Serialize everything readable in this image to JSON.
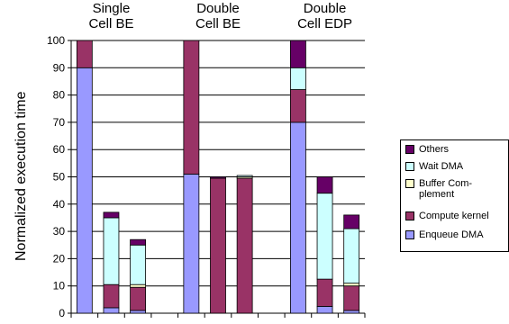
{
  "chart_data": {
    "type": "bar",
    "stacked": true,
    "ylabel": "Normalized execution time",
    "ylim": [
      0,
      100
    ],
    "yticks": [
      0,
      10,
      20,
      30,
      40,
      50,
      60,
      70,
      80,
      90,
      100
    ],
    "groups": [
      "Single\nCell BE",
      "Double\nCell BE",
      "Double\nCell EDP"
    ],
    "bars_per_group": 3,
    "grid": true,
    "legend_position": "right",
    "series": [
      {
        "name": "Enqueue DMA",
        "color": "#9999FF",
        "values": [
          90,
          2,
          1,
          51,
          0,
          0,
          70,
          2.5,
          1
        ]
      },
      {
        "name": "Compute kernel",
        "color": "#993366",
        "values": [
          10,
          8.5,
          8.5,
          49,
          49.5,
          49.5,
          12,
          10,
          9
        ]
      },
      {
        "name": "Buffer Com-\nplement",
        "color": "#FFFFCC",
        "values": [
          0,
          0,
          1,
          0,
          0,
          0.5,
          0,
          0,
          1
        ]
      },
      {
        "name": "Wait DMA",
        "color": "#CCFFFF",
        "values": [
          0,
          24.5,
          14.5,
          0,
          0,
          0.5,
          8,
          31.5,
          20
        ]
      },
      {
        "name": "Others",
        "color": "#660066",
        "values": [
          0,
          2,
          2,
          0,
          0.5,
          0,
          10,
          6,
          5
        ]
      }
    ]
  }
}
